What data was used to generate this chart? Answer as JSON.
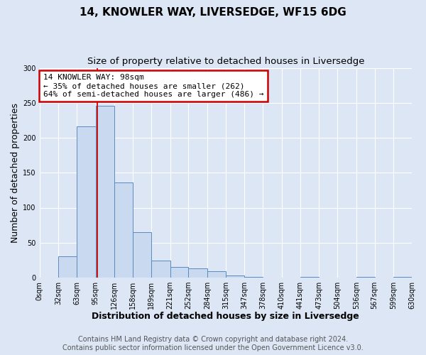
{
  "title": "14, KNOWLER WAY, LIVERSEDGE, WF15 6DG",
  "subtitle": "Size of property relative to detached houses in Liversedge",
  "xlabel": "Distribution of detached houses by size in Liversedge",
  "ylabel": "Number of detached properties",
  "bin_edges": [
    0,
    32,
    63,
    95,
    126,
    158,
    189,
    221,
    252,
    284,
    315,
    347,
    378,
    410,
    441,
    473,
    504,
    536,
    567,
    599,
    630
  ],
  "bar_heights": [
    0,
    30,
    216,
    246,
    136,
    65,
    24,
    15,
    13,
    9,
    3,
    1,
    0,
    0,
    1,
    0,
    0,
    1,
    0,
    1
  ],
  "bar_color": "#c9d9f0",
  "bar_edge_color": "#5b8abf",
  "property_size": 98,
  "annotation_title": "14 KNOWLER WAY: 98sqm",
  "annotation_line1": "← 35% of detached houses are smaller (262)",
  "annotation_line2": "64% of semi-detached houses are larger (486) →",
  "annotation_box_color": "#ffffff",
  "annotation_box_edge_color": "#cc0000",
  "vline_color": "#cc0000",
  "ylim": [
    0,
    300
  ],
  "yticks": [
    0,
    50,
    100,
    150,
    200,
    250,
    300
  ],
  "tick_labels": [
    "0sqm",
    "32sqm",
    "63sqm",
    "95sqm",
    "126sqm",
    "158sqm",
    "189sqm",
    "221sqm",
    "252sqm",
    "284sqm",
    "315sqm",
    "347sqm",
    "378sqm",
    "410sqm",
    "441sqm",
    "473sqm",
    "504sqm",
    "536sqm",
    "567sqm",
    "599sqm",
    "630sqm"
  ],
  "footnote1": "Contains HM Land Registry data © Crown copyright and database right 2024.",
  "footnote2": "Contains public sector information licensed under the Open Government Licence v3.0.",
  "figure_bg": "#dce6f5",
  "plot_bg": "#dce6f5",
  "grid_color": "#ffffff",
  "title_fontsize": 11,
  "subtitle_fontsize": 9.5,
  "axis_label_fontsize": 9,
  "tick_fontsize": 7,
  "footnote_fontsize": 7,
  "annotation_fontsize": 8
}
